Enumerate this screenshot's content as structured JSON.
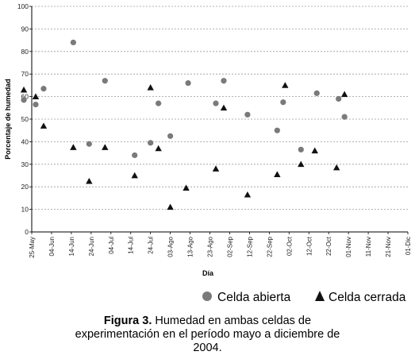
{
  "chart_data": {
    "type": "scatter",
    "ylabel": "Porcentaje de humedad",
    "xlabel": "Día",
    "ylim": [
      0,
      100
    ],
    "yticks": [
      0,
      10,
      20,
      30,
      40,
      50,
      60,
      70,
      80,
      90,
      100
    ],
    "x_tick_labels": [
      "25-May",
      "04-Jun",
      "14-Jun",
      "24-Jun",
      "04-Jul",
      "14-Jul",
      "24-Jul",
      "03-Ago",
      "13-Ago",
      "23-Ago",
      "02-Sep",
      "12-Sep",
      "22-Sep",
      "02-Oct",
      "12-Oct",
      "22-Oct",
      "01-Nov",
      "11-Nov",
      "21-Nov",
      "01-Dic"
    ],
    "grid": "horizontal-dashed",
    "legend_position": "bottom-right",
    "series": [
      {
        "name": "Celda abierta",
        "marker": "circle",
        "color": "#7a7a7a",
        "points": [
          {
            "x": "14-Jun",
            "y": 58.5
          },
          {
            "x": "20-Jun",
            "y": 56.5
          },
          {
            "x": "24-Jun",
            "y": 63.5
          },
          {
            "x": "09-Jul",
            "y": 84
          },
          {
            "x": "17-Jul",
            "y": 39
          },
          {
            "x": "25-Jul",
            "y": 67
          },
          {
            "x": "09-Ago",
            "y": 34
          },
          {
            "x": "17-Ago",
            "y": 39.5
          },
          {
            "x": "21-Ago",
            "y": 57
          },
          {
            "x": "27-Ago",
            "y": 42.5
          },
          {
            "x": "05-Sep",
            "y": 66
          },
          {
            "x": "19-Sep",
            "y": 57
          },
          {
            "x": "23-Sep",
            "y": 67
          },
          {
            "x": "05-Oct",
            "y": 52
          },
          {
            "x": "20-Oct",
            "y": 45
          },
          {
            "x": "23-Oct",
            "y": 57.5
          },
          {
            "x": "01-Nov",
            "y": 36.5
          },
          {
            "x": "09-Nov",
            "y": 61.5
          },
          {
            "x": "20-Nov",
            "y": 59
          },
          {
            "x": "23-Nov",
            "y": 51
          }
        ]
      },
      {
        "name": "Celda cerrada",
        "marker": "triangle",
        "color": "#111111",
        "points": [
          {
            "x": "14-Jun",
            "y": 63
          },
          {
            "x": "20-Jun",
            "y": 60
          },
          {
            "x": "24-Jun",
            "y": 47
          },
          {
            "x": "09-Jul",
            "y": 37.5
          },
          {
            "x": "17-Jul",
            "y": 22.5
          },
          {
            "x": "25-Jul",
            "y": 37.5
          },
          {
            "x": "09-Ago",
            "y": 25
          },
          {
            "x": "17-Ago",
            "y": 64
          },
          {
            "x": "21-Ago",
            "y": 37
          },
          {
            "x": "27-Ago",
            "y": 11
          },
          {
            "x": "04-Sep",
            "y": 19.5
          },
          {
            "x": "19-Sep",
            "y": 28
          },
          {
            "x": "23-Sep",
            "y": 55
          },
          {
            "x": "05-Oct",
            "y": 16.5
          },
          {
            "x": "20-Oct",
            "y": 25.5
          },
          {
            "x": "24-Oct",
            "y": 65
          },
          {
            "x": "01-Nov",
            "y": 30
          },
          {
            "x": "08-Nov",
            "y": 36
          },
          {
            "x": "19-Nov",
            "y": 28.5
          },
          {
            "x": "23-Nov",
            "y": 61
          }
        ]
      }
    ]
  },
  "caption": {
    "label": "Figura 3.",
    "text": " Humedad en ambas celdas de",
    "line2": "experimentación en el período mayo a diciembre de",
    "line3": "2004."
  }
}
